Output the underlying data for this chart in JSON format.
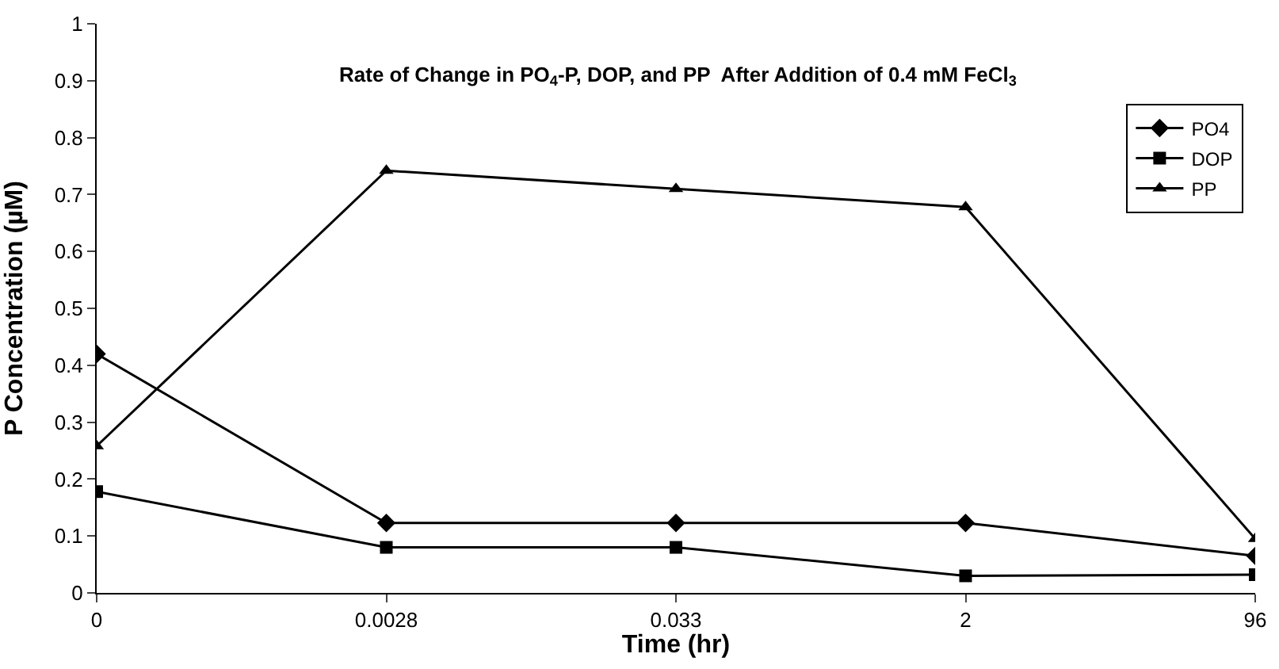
{
  "chart_data": {
    "type": "line",
    "title": "Rate of Change in PO$_{4}$-P, DOP, and PP  After Addition of 0.4 mM FeCl$_{3}$",
    "xlabel": "Time (hr)",
    "ylabel": "P Concentration (µM)",
    "categories": [
      "0",
      "0.0028",
      "0.033",
      "2",
      "96"
    ],
    "ylim": [
      0,
      1
    ],
    "yticks": [
      0,
      0.1,
      0.2,
      0.3,
      0.4,
      0.5,
      0.6,
      0.7,
      0.8,
      0.9,
      1
    ],
    "grid": false,
    "legend": "top right",
    "line_style": "solid",
    "series": [
      {
        "name": "PO4",
        "color": "#000000",
        "marker": "diamond",
        "values": [
          0.42,
          0.123,
          0.123,
          0.123,
          0.065
        ]
      },
      {
        "name": "DOP",
        "color": "#000000",
        "marker": "square",
        "values": [
          0.178,
          0.08,
          0.08,
          0.03,
          0.032
        ]
      },
      {
        "name": "PP",
        "color": "#000000",
        "marker": "triangle",
        "values": [
          0.258,
          0.742,
          0.71,
          0.678,
          0.095
        ]
      }
    ]
  }
}
